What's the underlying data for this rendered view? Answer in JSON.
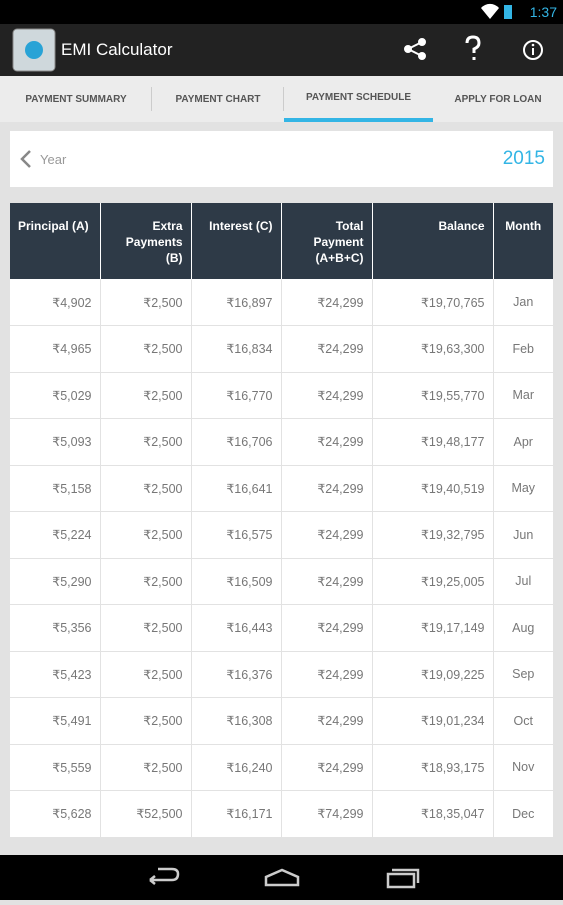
{
  "status_bar": {
    "time": "1:37"
  },
  "app_bar": {
    "title": "EMI Calculator"
  },
  "tabs": [
    "PAYMENT SUMMARY",
    "PAYMENT CHART",
    "PAYMENT SCHEDULE",
    "APPLY FOR LOAN"
  ],
  "year_selector": {
    "label": "Year",
    "year": "2015"
  },
  "table": {
    "headers": [
      "Principal (A)",
      "Extra Payments (B)",
      "Interest (C)",
      "Total Payment (A+B+C)",
      "Balance",
      "Month"
    ],
    "rows": [
      [
        "₹4,902",
        "₹2,500",
        "₹16,897",
        "₹24,299",
        "₹19,70,765",
        "Jan"
      ],
      [
        "₹4,965",
        "₹2,500",
        "₹16,834",
        "₹24,299",
        "₹19,63,300",
        "Feb"
      ],
      [
        "₹5,029",
        "₹2,500",
        "₹16,770",
        "₹24,299",
        "₹19,55,770",
        "Mar"
      ],
      [
        "₹5,093",
        "₹2,500",
        "₹16,706",
        "₹24,299",
        "₹19,48,177",
        "Apr"
      ],
      [
        "₹5,158",
        "₹2,500",
        "₹16,641",
        "₹24,299",
        "₹19,40,519",
        "May"
      ],
      [
        "₹5,224",
        "₹2,500",
        "₹16,575",
        "₹24,299",
        "₹19,32,795",
        "Jun"
      ],
      [
        "₹5,290",
        "₹2,500",
        "₹16,509",
        "₹24,299",
        "₹19,25,005",
        "Jul"
      ],
      [
        "₹5,356",
        "₹2,500",
        "₹16,443",
        "₹24,299",
        "₹19,17,149",
        "Aug"
      ],
      [
        "₹5,423",
        "₹2,500",
        "₹16,376",
        "₹24,299",
        "₹19,09,225",
        "Sep"
      ],
      [
        "₹5,491",
        "₹2,500",
        "₹16,308",
        "₹24,299",
        "₹19,01,234",
        "Oct"
      ],
      [
        "₹5,559",
        "₹2,500",
        "₹16,240",
        "₹24,299",
        "₹18,93,175",
        "Nov"
      ],
      [
        "₹5,628",
        "₹52,500",
        "₹16,171",
        "₹74,299",
        "₹18,35,047",
        "Dec"
      ]
    ]
  }
}
